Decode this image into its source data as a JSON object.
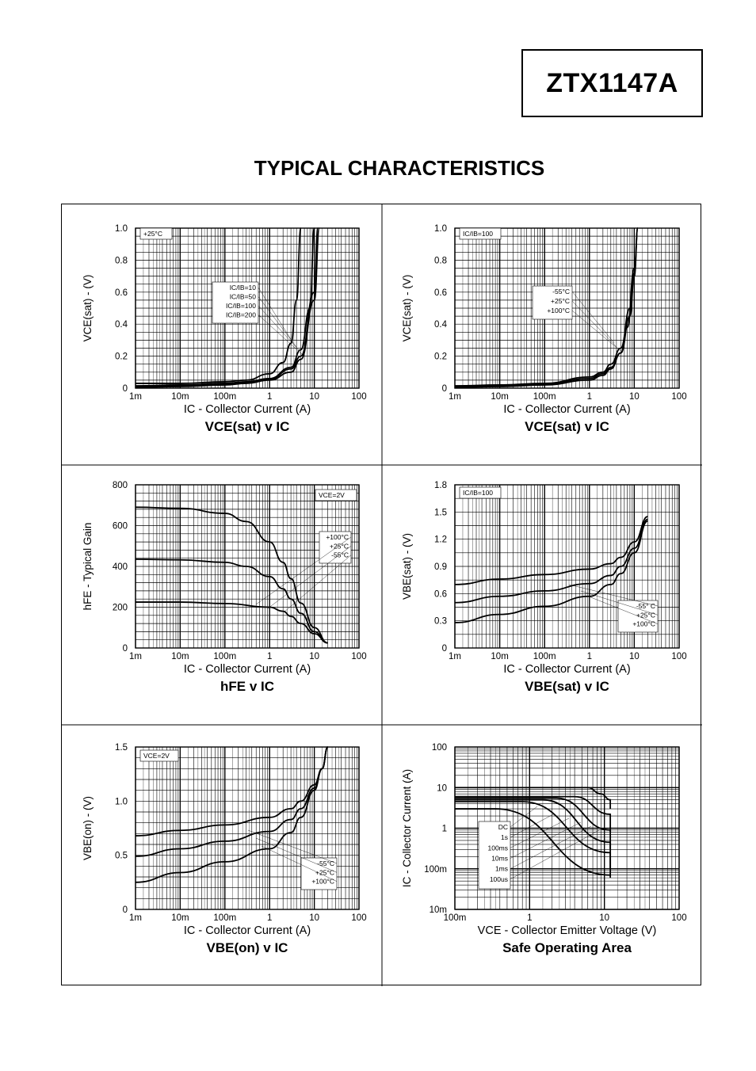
{
  "header": {
    "part_number": "ZTX1147A",
    "page_title": "TYPICAL CHARACTERISTICS"
  },
  "chart_data": [
    {
      "id": "vcesat_ic",
      "type": "line",
      "title": "VCE(sat) v IC",
      "xlabel": "IC - Collector Current (A)",
      "ylabel": "VCE(sat) - (V)",
      "xscale": "log",
      "xlim": [
        0.001,
        100
      ],
      "ylim": [
        0,
        1.0
      ],
      "x_ticks": [
        0.001,
        0.01,
        0.1,
        1,
        10,
        100
      ],
      "x_tick_labels": [
        "1m",
        "10m",
        "100m",
        "1",
        "10",
        "100"
      ],
      "y_ticks": [
        0,
        0.2,
        0.4,
        0.6,
        0.8,
        1.0
      ],
      "y_tick_labels": [
        "0",
        "0.2",
        "0.4",
        "0.6",
        "0.8",
        "1.0"
      ],
      "condition_box": "+25°C",
      "legend": [
        "IC/IB=10",
        "IC/IB=50",
        "IC/IB=100",
        "IC/IB=200"
      ],
      "series": [
        {
          "name": "IC/IB=200",
          "x": [
            0.001,
            0.01,
            0.1,
            0.3,
            1,
            2,
            3,
            4,
            5
          ],
          "y": [
            0.03,
            0.03,
            0.04,
            0.05,
            0.09,
            0.16,
            0.28,
            0.55,
            1.0
          ]
        },
        {
          "name": "IC/IB=100",
          "x": [
            0.001,
            0.01,
            0.1,
            0.3,
            1,
            3,
            5,
            8,
            10
          ],
          "y": [
            0.015,
            0.02,
            0.03,
            0.04,
            0.06,
            0.13,
            0.24,
            0.5,
            1.0
          ]
        },
        {
          "name": "IC/IB=50",
          "x": [
            0.001,
            0.01,
            0.1,
            0.3,
            1,
            3,
            5,
            10,
            12
          ],
          "y": [
            0.01,
            0.015,
            0.025,
            0.035,
            0.055,
            0.12,
            0.2,
            0.6,
            1.0
          ]
        },
        {
          "name": "IC/IB=10",
          "x": [
            0.001,
            0.01,
            0.1,
            0.3,
            1,
            3,
            5,
            10,
            13
          ],
          "y": [
            0.005,
            0.01,
            0.02,
            0.03,
            0.05,
            0.1,
            0.18,
            0.55,
            1.0
          ]
        }
      ]
    },
    {
      "id": "vcesat_temp",
      "type": "line",
      "title": "VCE(sat) v IC",
      "xlabel": "IC - Collector Current (A)",
      "ylabel": "VCE(sat) - (V)",
      "xscale": "log",
      "xlim": [
        0.001,
        100
      ],
      "ylim": [
        0,
        1.0
      ],
      "x_ticks": [
        0.001,
        0.01,
        0.1,
        1,
        10,
        100
      ],
      "x_tick_labels": [
        "1m",
        "10m",
        "100m",
        "1",
        "10",
        "100"
      ],
      "y_ticks": [
        0,
        0.2,
        0.4,
        0.6,
        0.8,
        1.0
      ],
      "y_tick_labels": [
        "0",
        "0.2",
        "0.4",
        "0.6",
        "0.8",
        "1.0"
      ],
      "condition_box": "IC/IB=100",
      "legend": [
        "-55°C",
        "+25°C",
        "+100°C"
      ],
      "series": [
        {
          "name": "-55°C",
          "x": [
            0.001,
            0.01,
            0.1,
            1,
            2,
            3,
            5,
            7,
            10,
            12
          ],
          "y": [
            0.005,
            0.01,
            0.02,
            0.05,
            0.08,
            0.12,
            0.22,
            0.38,
            0.75,
            1.0
          ]
        },
        {
          "name": "+25°C",
          "x": [
            0.001,
            0.01,
            0.1,
            1,
            2,
            3,
            5,
            8,
            10,
            12
          ],
          "y": [
            0.01,
            0.015,
            0.025,
            0.06,
            0.09,
            0.13,
            0.22,
            0.45,
            0.7,
            1.0
          ]
        },
        {
          "name": "+100°C",
          "x": [
            0.001,
            0.01,
            0.1,
            1,
            2,
            3,
            5,
            8,
            10,
            12
          ],
          "y": [
            0.015,
            0.02,
            0.03,
            0.07,
            0.1,
            0.15,
            0.25,
            0.5,
            0.72,
            1.0
          ]
        }
      ]
    },
    {
      "id": "hfe_ic",
      "type": "line",
      "title": "hFE v IC",
      "xlabel": "IC - Collector Current (A)",
      "ylabel": "hFE - Typical Gain",
      "xscale": "log",
      "xlim": [
        0.001,
        100
      ],
      "ylim": [
        0,
        800
      ],
      "x_ticks": [
        0.001,
        0.01,
        0.1,
        1,
        10,
        100
      ],
      "x_tick_labels": [
        "1m",
        "10m",
        "100m",
        "1",
        "10",
        "100"
      ],
      "y_ticks": [
        0,
        200,
        400,
        600,
        800
      ],
      "y_tick_labels": [
        "0",
        "200",
        "400",
        "600",
        "800"
      ],
      "condition_box": "VCE=2V",
      "legend": [
        "+100°C",
        "+25°C",
        "-55°C"
      ],
      "series": [
        {
          "name": "+100°C",
          "x": [
            0.001,
            0.01,
            0.1,
            0.3,
            1,
            2,
            3,
            5,
            10,
            20
          ],
          "y": [
            690,
            685,
            660,
            620,
            520,
            420,
            340,
            220,
            100,
            25
          ]
        },
        {
          "name": "+25°C",
          "x": [
            0.001,
            0.01,
            0.1,
            0.3,
            1,
            2,
            3,
            5,
            10,
            20
          ],
          "y": [
            435,
            432,
            420,
            400,
            350,
            290,
            240,
            170,
            80,
            25
          ]
        },
        {
          "name": "-55°C",
          "x": [
            0.001,
            0.01,
            0.1,
            1,
            2,
            3,
            5,
            10,
            20
          ],
          "y": [
            225,
            225,
            218,
            200,
            180,
            155,
            120,
            70,
            25
          ]
        }
      ]
    },
    {
      "id": "vbesat_ic",
      "type": "line",
      "title": "VBE(sat) v IC",
      "xlabel": "IC - Collector Current (A)",
      "ylabel": "VBE(sat) - (V)",
      "xscale": "log",
      "xlim": [
        0.001,
        100
      ],
      "ylim": [
        0,
        1.8
      ],
      "x_ticks": [
        0.001,
        0.01,
        0.1,
        1,
        10,
        100
      ],
      "x_tick_labels": [
        "1m",
        "10m",
        "100m",
        "1",
        "10",
        "100"
      ],
      "y_ticks": [
        0,
        0.3,
        0.6,
        0.9,
        1.2,
        1.5,
        1.8
      ],
      "y_tick_labels": [
        "0",
        "0.3",
        "0.6",
        "0.9",
        "1.2",
        "1.5",
        "1.8"
      ],
      "condition_box": "IC/IB=100",
      "legend": [
        "-55° C",
        "+25°C",
        "+100°C"
      ],
      "series": [
        {
          "name": "-55° C",
          "x": [
            0.001,
            0.01,
            0.1,
            1,
            3,
            5,
            10,
            20
          ],
          "y": [
            0.7,
            0.76,
            0.81,
            0.87,
            0.93,
            1.0,
            1.17,
            1.45
          ]
        },
        {
          "name": "+25°C",
          "x": [
            0.001,
            0.01,
            0.1,
            1,
            3,
            5,
            10,
            20
          ],
          "y": [
            0.5,
            0.57,
            0.63,
            0.71,
            0.8,
            0.9,
            1.1,
            1.42
          ]
        },
        {
          "name": "+100°C",
          "x": [
            0.001,
            0.01,
            0.1,
            1,
            3,
            5,
            10,
            20
          ],
          "y": [
            0.28,
            0.37,
            0.46,
            0.57,
            0.7,
            0.82,
            1.05,
            1.4
          ]
        }
      ]
    },
    {
      "id": "vbeon_ic",
      "type": "line",
      "title": "VBE(on) v IC",
      "xlabel": "IC - Collector Current (A)",
      "ylabel": "VBE(on) - (V)",
      "xscale": "log",
      "xlim": [
        0.001,
        100
      ],
      "ylim": [
        0,
        1.5
      ],
      "x_ticks": [
        0.001,
        0.01,
        0.1,
        1,
        10,
        100
      ],
      "x_tick_labels": [
        "1m",
        "10m",
        "100m",
        "1",
        "10",
        "100"
      ],
      "y_ticks": [
        0,
        0.5,
        1.0,
        1.5
      ],
      "y_tick_labels": [
        "0",
        "0.5",
        "1.0",
        "1.5"
      ],
      "condition_box": "VCE=2V",
      "legend": [
        "-55°C",
        "+25°C",
        "+100°C"
      ],
      "series": [
        {
          "name": "-55°C",
          "x": [
            0.001,
            0.01,
            0.1,
            1,
            3,
            5,
            10,
            15,
            20
          ],
          "y": [
            0.68,
            0.73,
            0.78,
            0.85,
            0.93,
            1.0,
            1.15,
            1.3,
            1.5
          ]
        },
        {
          "name": "+25°C",
          "x": [
            0.001,
            0.01,
            0.1,
            1,
            3,
            5,
            10,
            15,
            20
          ],
          "y": [
            0.49,
            0.56,
            0.63,
            0.72,
            0.83,
            0.93,
            1.12,
            1.3,
            1.5
          ]
        },
        {
          "name": "+100°C",
          "x": [
            0.001,
            0.01,
            0.1,
            1,
            3,
            5,
            10,
            15,
            20
          ],
          "y": [
            0.25,
            0.34,
            0.44,
            0.56,
            0.71,
            0.85,
            1.1,
            1.3,
            1.5
          ]
        }
      ]
    },
    {
      "id": "soa",
      "type": "line",
      "title": "Safe Operating Area",
      "xlabel": "VCE - Collector Emitter Voltage (V)",
      "ylabel": "IC - Collector Current (A)",
      "xscale": "log",
      "yscale": "log",
      "xlim": [
        0.1,
        100
      ],
      "ylim": [
        0.01,
        100
      ],
      "x_ticks": [
        0.1,
        1,
        10,
        100
      ],
      "x_tick_labels": [
        "100m",
        "1",
        "10",
        "100"
      ],
      "y_ticks": [
        0.01,
        0.1,
        1,
        10,
        100
      ],
      "y_tick_labels": [
        "10m",
        "100m",
        "1",
        "10",
        "100"
      ],
      "legend": [
        "DC",
        "1s",
        "100ms",
        "10ms",
        "1ms",
        "100us"
      ],
      "series": [
        {
          "name": "100us",
          "x": [
            0.1,
            3,
            6,
            9,
            12,
            12
          ],
          "y": [
            10,
            10,
            10,
            7,
            5,
            3
          ]
        },
        {
          "name": "1ms",
          "x": [
            0.1,
            4,
            12,
            12
          ],
          "y": [
            6,
            6,
            2.2,
            0.8
          ]
        },
        {
          "name": "10ms",
          "x": [
            0.1,
            2.3,
            12,
            12
          ],
          "y": [
            5.5,
            5.5,
            0.9,
            0.3
          ]
        },
        {
          "name": "100ms",
          "x": [
            0.1,
            1.5,
            12,
            12
          ],
          "y": [
            5,
            5,
            0.45,
            0.1
          ]
        },
        {
          "name": "1s",
          "x": [
            0.1,
            0.8,
            12,
            12
          ],
          "y": [
            4.5,
            4.5,
            0.25,
            0.06
          ]
        },
        {
          "name": "DC",
          "x": [
            0.1,
            0.35,
            12
          ],
          "y": [
            3,
            3,
            0.07
          ]
        }
      ]
    }
  ]
}
